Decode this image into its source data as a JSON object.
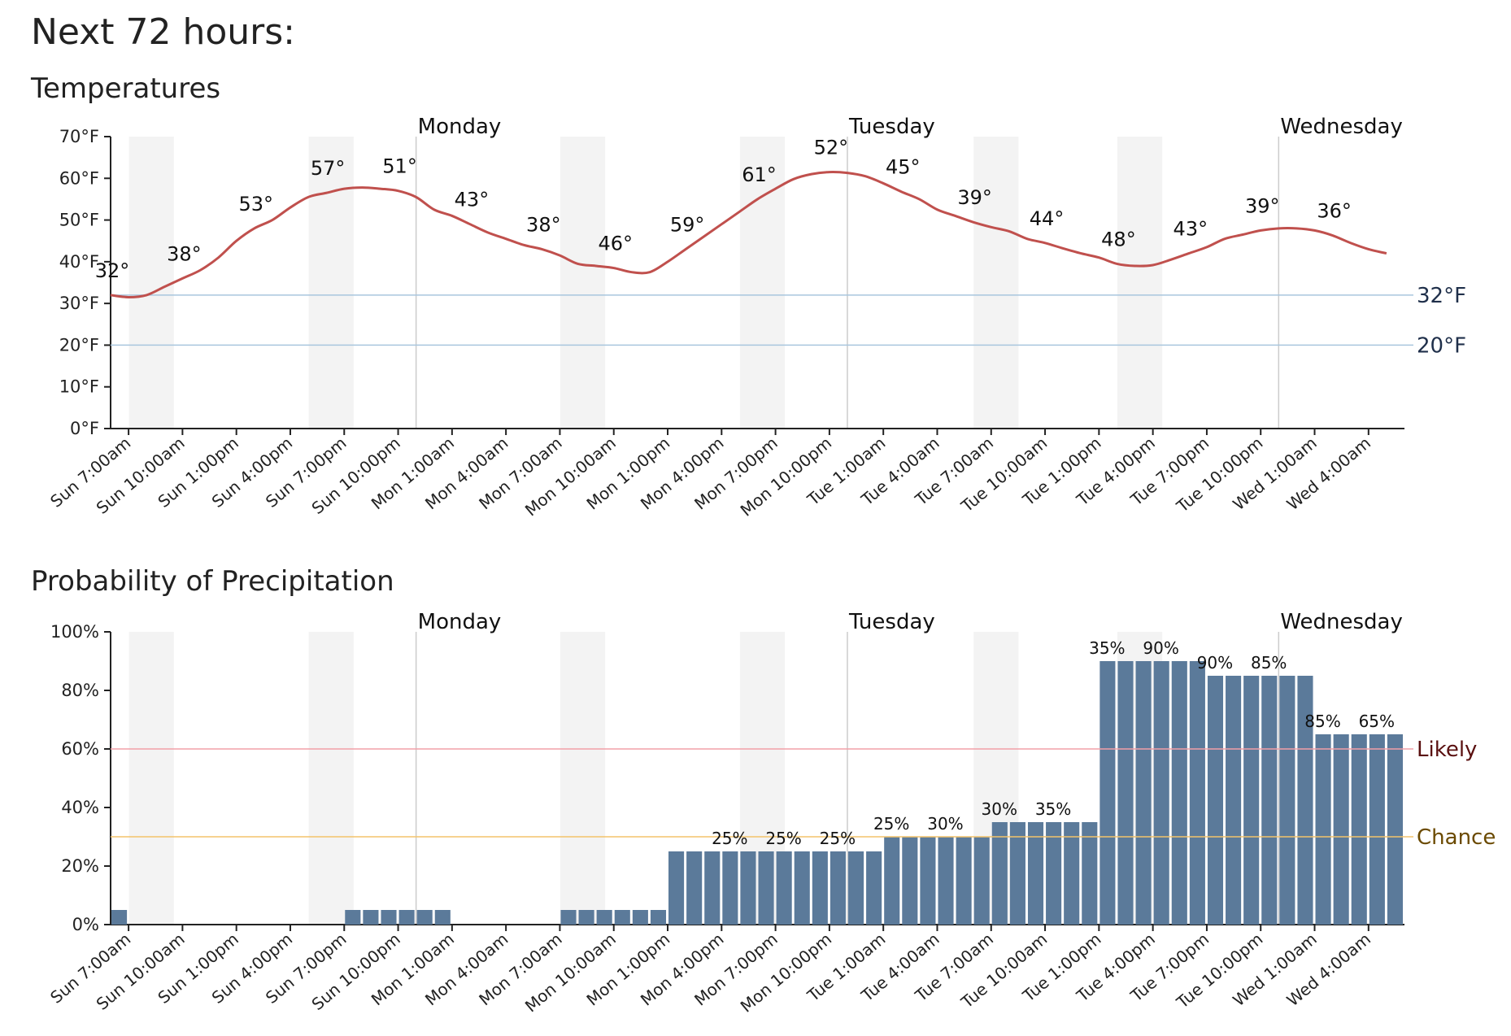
{
  "page": {
    "title": "Next 72 hours:"
  },
  "colors": {
    "temp_line": "#c0504d",
    "bar": "#5b7a9a",
    "night_band": "#f3f3f3",
    "ref_line": "#a9c6de",
    "likely_line": "#f2a0a8",
    "chance_line": "#f3c36b",
    "likely_text": "#5a1010",
    "chance_text": "#6b4a00",
    "ref_text": "#1f2f4a",
    "day_line": "#cccccc"
  },
  "x_tick_labels": [
    "Sun 7:00am",
    "Sun 10:00am",
    "Sun 1:00pm",
    "Sun 4:00pm",
    "Sun 7:00pm",
    "Sun 10:00pm",
    "Mon 1:00am",
    "Mon 4:00am",
    "Mon 7:00am",
    "Mon 10:00am",
    "Mon 1:00pm",
    "Mon 4:00pm",
    "Mon 7:00pm",
    "Mon 10:00pm",
    "Tue 1:00am",
    "Tue 4:00am",
    "Tue 7:00am",
    "Tue 10:00am",
    "Tue 1:00pm",
    "Tue 4:00pm",
    "Tue 7:00pm",
    "Tue 10:00pm",
    "Wed 1:00am",
    "Wed 4:00am"
  ],
  "day_markers": [
    {
      "label": "Monday",
      "hour": 17
    },
    {
      "label": "Tuesday",
      "hour": 41
    },
    {
      "label": "Wednesday",
      "hour": 65
    }
  ],
  "night_bands_hours": [
    [
      1,
      4
    ],
    [
      12,
      15
    ],
    [
      14.0,
      14.0
    ]
  ],
  "chart_data": [
    {
      "type": "line",
      "title": "Temperatures",
      "x_hours_from_sun_6am": [
        0,
        1,
        2,
        3,
        4,
        5,
        6,
        7,
        8,
        9,
        10,
        11,
        12,
        13,
        14,
        15,
        16,
        17,
        18,
        19,
        20,
        21,
        22,
        23,
        24,
        25,
        26,
        27,
        28,
        29,
        30,
        31,
        32,
        33,
        34,
        35,
        36,
        37,
        38,
        39,
        40,
        41,
        42,
        43,
        44,
        45,
        46,
        47,
        48,
        49,
        50,
        51,
        52,
        53,
        54,
        55,
        56,
        57,
        58,
        59,
        60,
        61,
        62,
        63,
        64,
        65,
        66,
        67,
        68,
        69,
        70,
        71,
        72
      ],
      "series": [
        {
          "values": [
            32,
            31.5,
            32,
            34,
            36,
            38,
            41,
            45,
            48,
            50,
            53,
            55.5,
            56.5,
            57.5,
            57.8,
            57.5,
            57,
            55.5,
            52.5,
            51,
            49,
            47,
            45.5,
            44,
            43,
            41.5,
            39.5,
            39,
            38.5,
            37.5,
            37.5,
            40,
            43,
            46,
            49,
            52,
            55,
            57.5,
            59.8,
            61,
            61.5,
            61.3,
            60.5,
            58.8,
            56.8,
            55,
            52.5,
            51,
            49.5,
            48.3,
            47.3,
            45.5,
            44.5,
            43.2,
            42,
            41,
            39.5,
            39,
            39.2,
            40.5,
            42,
            43.5,
            45.5,
            46.5,
            47.5,
            48,
            48,
            47.5,
            46.3,
            44.5,
            43,
            42,
            41,
            40,
            39,
            38.2,
            38,
            37.5,
            36.5,
            35.5,
            35,
            35,
            35
          ]
        }
      ],
      "value_labels": [
        {
          "hour": 0,
          "text": "32°"
        },
        {
          "hour": 4,
          "text": "38°"
        },
        {
          "hour": 8,
          "text": "53°"
        },
        {
          "hour": 12,
          "text": "57°"
        },
        {
          "hour": 16,
          "text": "51°"
        },
        {
          "hour": 20,
          "text": "43°"
        },
        {
          "hour": 24,
          "text": "38°"
        },
        {
          "hour": 28,
          "text": "46°"
        },
        {
          "hour": 32,
          "text": "59°"
        },
        {
          "hour": 36,
          "text": "61°"
        },
        {
          "hour": 40,
          "text": "52°"
        },
        {
          "hour": 44,
          "text": "45°"
        },
        {
          "hour": 48,
          "text": "39°"
        },
        {
          "hour": 52,
          "text": "44°"
        },
        {
          "hour": 56,
          "text": "48°"
        },
        {
          "hour": 60,
          "text": "43°"
        },
        {
          "hour": 64,
          "text": "39°"
        },
        {
          "hour": 68,
          "text": "36°"
        }
      ],
      "y_ticks": [
        "0°F",
        "10°F",
        "20°F",
        "30°F",
        "40°F",
        "50°F",
        "60°F",
        "70°F"
      ],
      "ylim": [
        0,
        70
      ],
      "reference_lines": [
        {
          "value": 32,
          "label": "32°F"
        },
        {
          "value": 20,
          "label": "20°F"
        }
      ]
    },
    {
      "type": "bar",
      "title": "Probability of Precipitation",
      "x_hours_from_sun_6am": [
        0,
        1,
        2,
        3,
        4,
        5,
        6,
        7,
        8,
        9,
        10,
        11,
        12,
        13,
        14,
        15,
        16,
        17,
        18,
        19,
        20,
        21,
        22,
        23,
        24,
        25,
        26,
        27,
        28,
        29,
        30,
        31,
        32,
        33,
        34,
        35,
        36,
        37,
        38,
        39,
        40,
        41,
        42,
        43,
        44,
        45,
        46,
        47,
        48,
        49,
        50,
        51,
        52,
        53,
        54,
        55,
        56,
        57,
        58,
        59,
        60,
        61,
        62,
        63,
        64,
        65,
        66,
        67,
        68,
        69,
        70,
        71
      ],
      "series": [
        {
          "values": [
            5,
            0,
            0,
            0,
            0,
            0,
            0,
            0,
            0,
            0,
            0,
            0,
            0,
            5,
            5,
            5,
            5,
            5,
            5,
            0,
            0,
            0,
            0,
            0,
            0,
            5,
            5,
            5,
            5,
            5,
            5,
            25,
            25,
            25,
            25,
            25,
            25,
            25,
            25,
            25,
            25,
            25,
            25,
            30,
            30,
            30,
            30,
            30,
            30,
            35,
            35,
            35,
            35,
            35,
            35,
            90,
            90,
            90,
            90,
            90,
            90,
            85,
            85,
            85,
            85,
            85,
            85,
            65,
            65,
            65,
            65,
            65
          ]
        }
      ],
      "value_labels": [
        {
          "hour": 34,
          "text": "25%"
        },
        {
          "hour": 37,
          "text": "25%"
        },
        {
          "hour": 40,
          "text": "25%"
        },
        {
          "hour": 43,
          "text": "25%"
        },
        {
          "hour": 46,
          "text": "30%"
        },
        {
          "hour": 49,
          "text": "30%"
        },
        {
          "hour": 52,
          "text": "35%"
        },
        {
          "hour": 55,
          "text": "35%"
        },
        {
          "hour": 58,
          "text": "90%"
        },
        {
          "hour": 61,
          "text": "90%"
        },
        {
          "hour": 64,
          "text": "85%"
        },
        {
          "hour": 67,
          "text": "85%"
        },
        {
          "hour": 70,
          "text": "65%"
        }
      ],
      "y_ticks": [
        "0%",
        "20%",
        "40%",
        "60%",
        "80%",
        "100%"
      ],
      "ylim": [
        0,
        100
      ],
      "reference_lines": [
        {
          "value": 60,
          "label": "Likely"
        },
        {
          "value": 30,
          "label": "Chance"
        }
      ]
    }
  ]
}
